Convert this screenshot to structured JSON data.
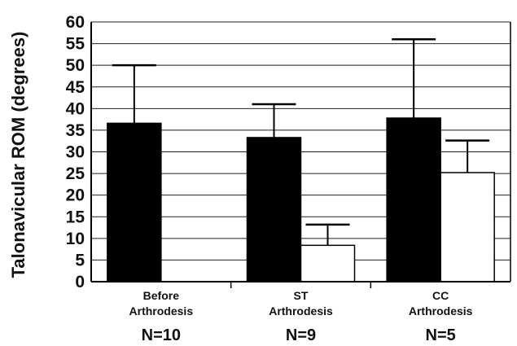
{
  "chart_data": {
    "type": "bar",
    "ylabel": "Talonavicular  ROM (degrees)",
    "ylim": [
      0,
      60
    ],
    "yticks": [
      0,
      5,
      10,
      15,
      20,
      25,
      30,
      35,
      40,
      45,
      50,
      55,
      60
    ],
    "grid": true,
    "categories": [
      {
        "lines": [
          "Before",
          "Arthrodesis"
        ],
        "n_label": "N=10"
      },
      {
        "lines": [
          "ST",
          "Arthrodesis"
        ],
        "n_label": "N=9"
      },
      {
        "lines": [
          "CC",
          "Arthrodesis"
        ],
        "n_label": "N=5"
      }
    ],
    "series": [
      {
        "color": "#000000",
        "values": [
          36.6,
          33.3,
          37.8
        ],
        "error_upper": [
          50,
          41,
          56
        ]
      },
      {
        "color": "#ffffff",
        "values": [
          null,
          8.4,
          25.2
        ],
        "error_upper": [
          null,
          13.2,
          32.6
        ]
      }
    ]
  }
}
